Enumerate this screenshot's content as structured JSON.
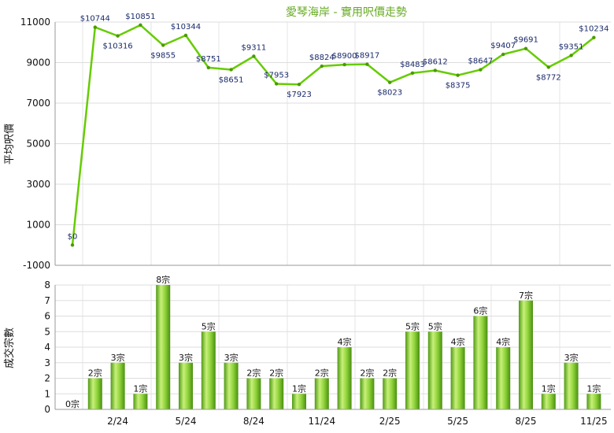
{
  "title": "愛琴海岸 - 實用呎價走勢",
  "chart_data": [
    {
      "type": "line",
      "ylabel": "平均呎價",
      "ylim": [
        -1000,
        11000
      ],
      "yticks": [
        -1000,
        1000,
        3000,
        5000,
        7000,
        9000,
        11000
      ],
      "grid": true,
      "series": [
        {
          "values": [
            0,
            10744,
            10316,
            10851,
            9855,
            10344,
            8751,
            8651,
            9311,
            7953,
            7923,
            8824,
            8900,
            8917,
            8023,
            8483,
            8612,
            8375,
            8647,
            9407,
            9691,
            8772,
            9351,
            10234
          ],
          "labels": [
            "$0",
            "$10744",
            "$10316",
            "$10851",
            "$9855",
            "$10344",
            "$8751",
            "$8651",
            "$9311",
            "$7953",
            "$7923",
            "$8824",
            "$8900",
            "$8917",
            "$8023",
            "$8483",
            "$8612",
            "$8375",
            "$8647",
            "$9407",
            "$9691",
            "$8772",
            "$9351",
            "$10234"
          ],
          "color": "#66cc00"
        }
      ]
    },
    {
      "type": "bar",
      "xlabel": "",
      "ylabel": "成交宗數",
      "ylim": [
        0,
        8
      ],
      "yticks": [
        0,
        1,
        2,
        3,
        4,
        5,
        6,
        7,
        8
      ],
      "xticks": [
        "2/24",
        "5/24",
        "8/24",
        "11/24",
        "2/25",
        "5/25",
        "8/25",
        "11/25"
      ],
      "grid": true,
      "series": [
        {
          "values": [
            0,
            2,
            3,
            1,
            8,
            3,
            5,
            3,
            2,
            2,
            1,
            2,
            4,
            2,
            2,
            5,
            5,
            4,
            6,
            4,
            7,
            1,
            3,
            1
          ],
          "labels": [
            "0宗",
            "2宗",
            "3宗",
            "1宗",
            "8宗",
            "3宗",
            "5宗",
            "3宗",
            "2宗",
            "2宗",
            "1宗",
            "2宗",
            "4宗",
            "2宗",
            "2宗",
            "5宗",
            "5宗",
            "4宗",
            "6宗",
            "4宗",
            "7宗",
            "1宗",
            "3宗",
            "1宗"
          ],
          "color": "#77cc22"
        }
      ]
    }
  ]
}
